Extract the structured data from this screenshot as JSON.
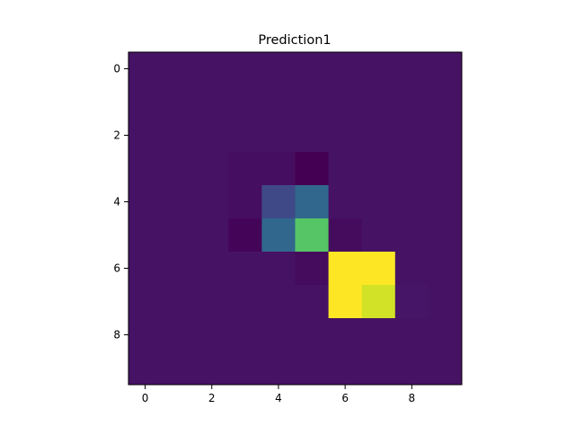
{
  "chart_data": {
    "type": "heatmap",
    "title": "Prediction1",
    "xlabel": "",
    "ylabel": "",
    "colormap": "viridis",
    "rows": 10,
    "cols": 10,
    "x_ticks": [
      0,
      2,
      4,
      6,
      8
    ],
    "y_ticks": [
      0,
      2,
      4,
      6,
      8
    ],
    "xlim": [
      -0.5,
      9.5
    ],
    "ylim": [
      9.5,
      -0.5
    ],
    "color_range": [
      -0.05,
      1.0
    ],
    "grid": false,
    "values": [
      [
        0,
        0,
        0,
        0,
        0,
        0,
        0,
        0,
        0,
        0
      ],
      [
        0,
        0,
        0,
        0,
        0,
        0,
        0,
        0,
        0,
        0
      ],
      [
        0,
        0,
        0,
        0,
        0,
        0,
        0,
        0,
        0,
        0
      ],
      [
        0,
        0,
        0,
        -0.01,
        -0.01,
        -0.05,
        0,
        0,
        0,
        0
      ],
      [
        0,
        0,
        0,
        -0.01,
        0.18,
        0.3,
        0,
        0,
        0,
        0
      ],
      [
        0,
        0,
        0,
        -0.04,
        0.3,
        0.72,
        -0.02,
        0,
        0,
        0
      ],
      [
        0,
        0,
        0,
        0,
        0,
        -0.02,
        1.0,
        1.0,
        0,
        0
      ],
      [
        0,
        0,
        0,
        0,
        0,
        0,
        1.0,
        0.93,
        0.01,
        0
      ],
      [
        0,
        0,
        0,
        0,
        0,
        0,
        0,
        0,
        0,
        0
      ],
      [
        0,
        0,
        0,
        0,
        0,
        0,
        0,
        0,
        0,
        0
      ]
    ]
  }
}
